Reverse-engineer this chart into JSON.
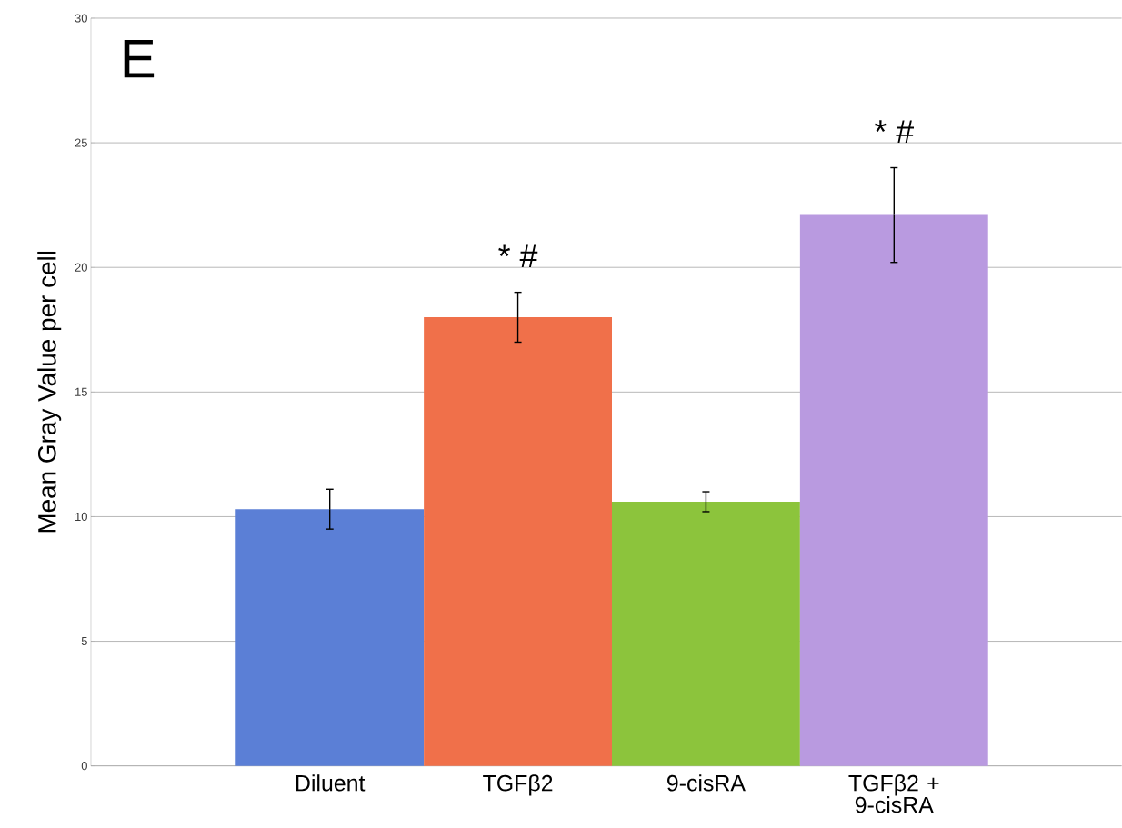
{
  "chart_data": {
    "type": "bar",
    "ylabel": "Mean Gray Value per cell",
    "categories": [
      "Diluent",
      "TGFβ2",
      "9-cisRA",
      "TGFβ2 + 9-cisRA"
    ],
    "values": [
      10.3,
      18.0,
      10.6,
      22.1
    ],
    "errors": [
      0.8,
      1.0,
      0.4,
      1.9
    ],
    "colors": [
      "#5b7fd6",
      "#f0704a",
      "#8cc43c",
      "#b99ae0"
    ],
    "ylim": [
      0,
      30
    ],
    "yticks": [
      0,
      5,
      10,
      15,
      20,
      25,
      30
    ],
    "grid": "y",
    "annotations": [
      "E",
      "* #",
      "* #"
    ]
  }
}
